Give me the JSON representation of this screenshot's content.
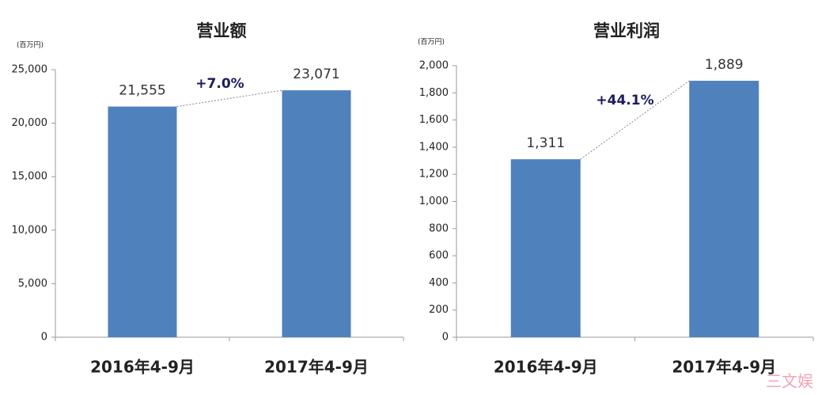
{
  "chart_data": [
    {
      "type": "bar",
      "title": "营业额",
      "unit_label": "(百万円)",
      "categories": [
        "2016年4-9月",
        "2017年4-9月"
      ],
      "values": [
        21555,
        23071
      ],
      "value_labels": [
        "21,555",
        "23,071"
      ],
      "color": "#4f81bd",
      "annotation": "+7.0%",
      "ylim": [
        0,
        25000
      ],
      "yticks": [
        0,
        {
          "value": 5000,
          "label": "5,000"
        },
        {
          "value": 10000,
          "label": "10,000"
        },
        {
          "value": 15000,
          "label": "15,000"
        },
        {
          "value": 20000,
          "label": "20,000"
        },
        {
          "value": 25000,
          "label": "25,000"
        }
      ]
    },
    {
      "type": "bar",
      "title": "营业利润",
      "unit_label": "(百万円)",
      "categories": [
        "2016年4-9月",
        "2017年4-9月"
      ],
      "values": [
        1311,
        1889
      ],
      "value_labels": [
        "1,311",
        "1,889"
      ],
      "color": "#4f81bd",
      "annotation": "+44.1%",
      "ylim": [
        0,
        2000
      ],
      "yticks": [
        0,
        200,
        400,
        600,
        800,
        {
          "value": 1000,
          "label": "1,000"
        },
        {
          "value": 1200,
          "label": "1,200"
        },
        {
          "value": 1400,
          "label": "1,400"
        },
        {
          "value": 1600,
          "label": "1,600"
        },
        {
          "value": 1800,
          "label": "1,800"
        },
        {
          "value": 2000,
          "label": "2,000"
        }
      ]
    }
  ],
  "watermark": "三文娱"
}
